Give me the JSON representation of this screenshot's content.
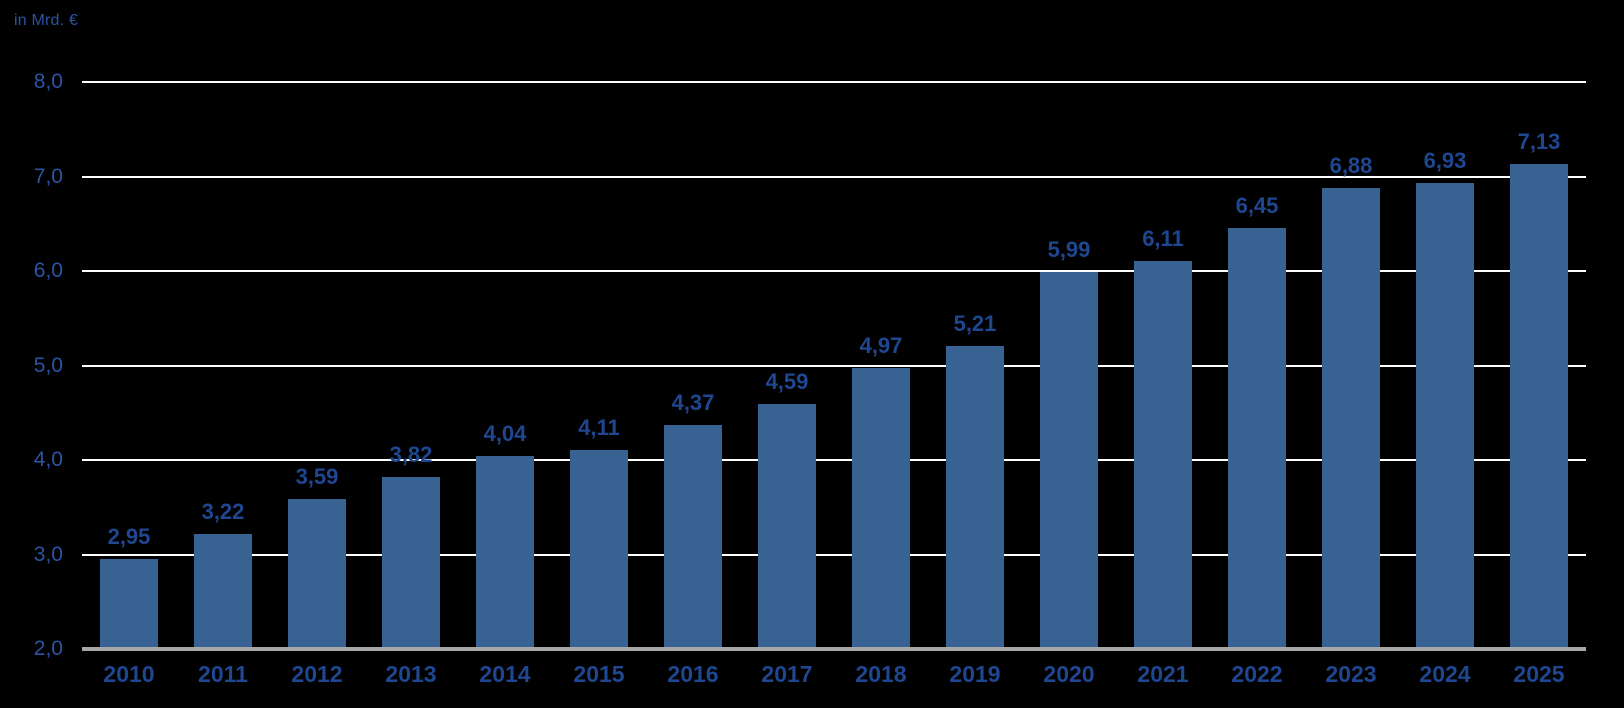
{
  "unit_label": "in Mrd. €",
  "colors": {
    "background": "#000000",
    "bar": "#386291",
    "value_label": "#1f4791",
    "year_label": "#1f4791",
    "tick_label": "#2b54a4",
    "unit_label": "#2b54a4",
    "gridline": "#ffffff",
    "baseline": "#a8a8a8"
  },
  "chart_data": {
    "type": "bar",
    "title": "",
    "ylabel": "in Mrd. €",
    "xlabel": "",
    "categories": [
      "2010",
      "2011",
      "2012",
      "2013",
      "2014",
      "2015",
      "2016",
      "2017",
      "2018",
      "2019",
      "2020",
      "2021",
      "2022",
      "2023",
      "2024",
      "2025"
    ],
    "values": [
      2.95,
      3.22,
      3.59,
      3.82,
      4.04,
      4.11,
      4.37,
      4.59,
      4.97,
      5.21,
      5.99,
      6.11,
      6.45,
      6.88,
      6.93,
      7.13
    ],
    "value_labels": [
      "2,95",
      "3,22",
      "3,59",
      "3,82",
      "4,04",
      "4,11",
      "4,37",
      "4,59",
      "4,97",
      "5,21",
      "5,99",
      "6,11",
      "6,45",
      "6,88",
      "6,93",
      "7,13"
    ],
    "ylim": [
      2.0,
      8.0
    ],
    "yticks": [
      8.0,
      7.0,
      6.0,
      5.0,
      4.0,
      3.0,
      2.0
    ],
    "ytick_labels": [
      "8,0",
      "7,0",
      "6,0",
      "5,0",
      "4,0",
      "3,0",
      "2,0"
    ],
    "grid": true,
    "legend": false,
    "gridlines_behind_bars": true
  }
}
